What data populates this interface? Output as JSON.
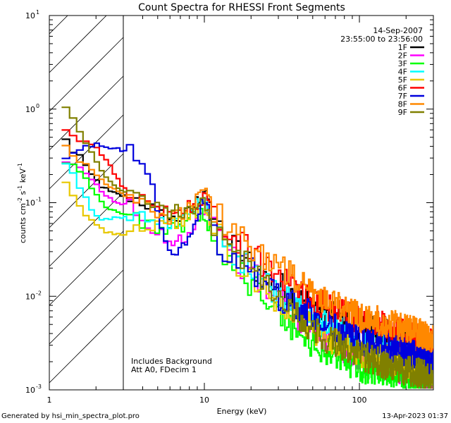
{
  "chart_data": {
    "type": "line",
    "title": "Count Spectra for RHESSI Front Segments",
    "xlabel": "Energy (keV)",
    "ylabel_parts": [
      "counts cm",
      "-2",
      " s",
      "-1",
      " keV",
      "-1"
    ],
    "xscale": "log",
    "yscale": "log",
    "xlim": [
      1,
      300
    ],
    "ylim": [
      0.001,
      10
    ],
    "x_ticks": [
      {
        "value": 1,
        "label": "1"
      },
      {
        "value": 10,
        "label": "10"
      },
      {
        "value": 100,
        "label": "100"
      }
    ],
    "y_ticks": [
      {
        "value": 0.001,
        "base": "10",
        "exp": "-3"
      },
      {
        "value": 0.01,
        "base": "10",
        "exp": "-2"
      },
      {
        "value": 0.1,
        "base": "10",
        "exp": "-1"
      },
      {
        "value": 1,
        "base": "10",
        "exp": "0"
      },
      {
        "value": 10,
        "base": "10",
        "exp": "1"
      }
    ],
    "date": "14-Sep-2007",
    "time_range": "23:55:00 to 23:56:00",
    "annotation_lines": [
      "Includes Background",
      "Att A0, FDecim 1"
    ],
    "excluded_region": {
      "x_from": 1,
      "x_to": 3
    },
    "series": [
      {
        "name": "1F",
        "color": "#000000",
        "points": [
          [
            1.2,
            0.47
          ],
          [
            1.35,
            0.35
          ],
          [
            1.5,
            0.32
          ],
          [
            1.7,
            0.22
          ],
          [
            1.9,
            0.18
          ],
          [
            2.1,
            0.15
          ],
          [
            2.4,
            0.13
          ],
          [
            2.8,
            0.12
          ],
          [
            3.2,
            0.115
          ],
          [
            4,
            0.1
          ],
          [
            5,
            0.075
          ],
          [
            6,
            0.065
          ],
          [
            7,
            0.07
          ],
          [
            8,
            0.08
          ],
          [
            9,
            0.11
          ],
          [
            10,
            0.15
          ],
          [
            11,
            0.07
          ],
          [
            13,
            0.042
          ],
          [
            16,
            0.031
          ],
          [
            20,
            0.021
          ],
          [
            25,
            0.015
          ],
          [
            30,
            0.013
          ],
          [
            40,
            0.0095
          ],
          [
            50,
            0.008
          ],
          [
            60,
            0.0065
          ],
          [
            80,
            0.0055
          ],
          [
            100,
            0.0045
          ],
          [
            130,
            0.0042
          ],
          [
            160,
            0.0038
          ],
          [
            200,
            0.0036
          ],
          [
            250,
            0.003
          ],
          [
            300,
            0.0025
          ]
        ]
      },
      {
        "name": "2F",
        "color": "#ff00ff",
        "points": [
          [
            1.2,
            0.26
          ],
          [
            1.35,
            0.25
          ],
          [
            1.5,
            0.24
          ],
          [
            1.7,
            0.2
          ],
          [
            1.9,
            0.16
          ],
          [
            2.1,
            0.13
          ],
          [
            2.4,
            0.11
          ],
          [
            2.8,
            0.1
          ],
          [
            3.2,
            0.09
          ],
          [
            4,
            0.06
          ],
          [
            5,
            0.045
          ],
          [
            6,
            0.04
          ],
          [
            7,
            0.042
          ],
          [
            8,
            0.05
          ],
          [
            9,
            0.07
          ],
          [
            10,
            0.09
          ],
          [
            11,
            0.06
          ],
          [
            13,
            0.035
          ],
          [
            16,
            0.025
          ],
          [
            20,
            0.017
          ],
          [
            25,
            0.012
          ],
          [
            30,
            0.009
          ],
          [
            40,
            0.006
          ],
          [
            50,
            0.0045
          ],
          [
            60,
            0.0035
          ],
          [
            80,
            0.0028
          ],
          [
            100,
            0.0022
          ],
          [
            130,
            0.002
          ],
          [
            160,
            0.0017
          ],
          [
            200,
            0.0016
          ],
          [
            250,
            0.0014
          ],
          [
            300,
            0.0012
          ]
        ]
      },
      {
        "name": "3F",
        "color": "#00ff00",
        "points": [
          [
            1.2,
            0.27
          ],
          [
            1.35,
            0.26
          ],
          [
            1.5,
            0.22
          ],
          [
            1.7,
            0.17
          ],
          [
            1.9,
            0.13
          ],
          [
            2.1,
            0.1
          ],
          [
            2.4,
            0.085
          ],
          [
            2.8,
            0.078
          ],
          [
            3.2,
            0.07
          ],
          [
            4,
            0.062
          ],
          [
            5,
            0.055
          ],
          [
            6,
            0.05
          ],
          [
            7,
            0.055
          ],
          [
            8,
            0.065
          ],
          [
            9,
            0.07
          ],
          [
            10,
            0.075
          ],
          [
            11,
            0.045
          ],
          [
            13,
            0.03
          ],
          [
            16,
            0.02
          ],
          [
            20,
            0.013
          ],
          [
            25,
            0.009
          ],
          [
            30,
            0.006
          ],
          [
            40,
            0.004
          ],
          [
            50,
            0.003
          ],
          [
            60,
            0.0025
          ],
          [
            80,
            0.002
          ],
          [
            100,
            0.0017
          ],
          [
            130,
            0.0016
          ],
          [
            160,
            0.0015
          ],
          [
            200,
            0.0014
          ],
          [
            250,
            0.0013
          ],
          [
            300,
            0.0012
          ]
        ]
      },
      {
        "name": "4F",
        "color": "#00ffff",
        "points": [
          [
            1.2,
            0.26
          ],
          [
            1.35,
            0.2
          ],
          [
            1.5,
            0.15
          ],
          [
            1.7,
            0.1
          ],
          [
            1.9,
            0.075
          ],
          [
            2.1,
            0.065
          ],
          [
            2.4,
            0.068
          ],
          [
            2.8,
            0.07
          ],
          [
            3.2,
            0.072
          ],
          [
            4,
            0.07
          ],
          [
            5,
            0.065
          ],
          [
            6,
            0.06
          ],
          [
            7,
            0.065
          ],
          [
            8,
            0.08
          ],
          [
            9,
            0.095
          ],
          [
            10,
            0.11
          ],
          [
            11,
            0.06
          ],
          [
            13,
            0.035
          ],
          [
            16,
            0.026
          ],
          [
            20,
            0.018
          ],
          [
            25,
            0.013
          ],
          [
            30,
            0.01
          ],
          [
            40,
            0.0075
          ],
          [
            50,
            0.006
          ],
          [
            60,
            0.005
          ],
          [
            80,
            0.004
          ],
          [
            100,
            0.0033
          ],
          [
            130,
            0.003
          ],
          [
            160,
            0.0027
          ],
          [
            200,
            0.0025
          ],
          [
            250,
            0.0023
          ],
          [
            300,
            0.002
          ]
        ]
      },
      {
        "name": "5F",
        "color": "#e8c800",
        "points": [
          [
            1.2,
            0.16
          ],
          [
            1.35,
            0.12
          ],
          [
            1.5,
            0.09
          ],
          [
            1.7,
            0.07
          ],
          [
            1.9,
            0.06
          ],
          [
            2.1,
            0.052
          ],
          [
            2.4,
            0.048
          ],
          [
            2.8,
            0.045
          ],
          [
            3.2,
            0.048
          ],
          [
            4,
            0.055
          ],
          [
            5,
            0.06
          ],
          [
            6,
            0.06
          ],
          [
            7,
            0.065
          ],
          [
            8,
            0.075
          ],
          [
            9,
            0.085
          ],
          [
            10,
            0.095
          ],
          [
            11,
            0.055
          ],
          [
            13,
            0.035
          ],
          [
            16,
            0.024
          ],
          [
            20,
            0.016
          ],
          [
            25,
            0.011
          ],
          [
            30,
            0.008
          ],
          [
            40,
            0.006
          ],
          [
            50,
            0.0045
          ],
          [
            60,
            0.0038
          ],
          [
            80,
            0.003
          ],
          [
            100,
            0.0025
          ],
          [
            130,
            0.0023
          ],
          [
            160,
            0.0021
          ],
          [
            200,
            0.0019
          ],
          [
            250,
            0.0018
          ],
          [
            300,
            0.0016
          ]
        ]
      },
      {
        "name": "6F",
        "color": "#ff0000",
        "points": [
          [
            1.2,
            0.62
          ],
          [
            1.35,
            0.5
          ],
          [
            1.5,
            0.45
          ],
          [
            1.7,
            0.45
          ],
          [
            1.9,
            0.4
          ],
          [
            2.1,
            0.33
          ],
          [
            2.4,
            0.25
          ],
          [
            2.8,
            0.16
          ],
          [
            3.2,
            0.13
          ],
          [
            4,
            0.1
          ],
          [
            5,
            0.08
          ],
          [
            6,
            0.075
          ],
          [
            7,
            0.085
          ],
          [
            8,
            0.09
          ],
          [
            9,
            0.1
          ],
          [
            10,
            0.12
          ],
          [
            11,
            0.09
          ],
          [
            13,
            0.06
          ],
          [
            16,
            0.04
          ],
          [
            20,
            0.028
          ],
          [
            25,
            0.021
          ],
          [
            30,
            0.017
          ],
          [
            40,
            0.012
          ],
          [
            50,
            0.0095
          ],
          [
            60,
            0.008
          ],
          [
            80,
            0.0065
          ],
          [
            100,
            0.0055
          ],
          [
            130,
            0.005
          ],
          [
            160,
            0.0045
          ],
          [
            200,
            0.004
          ],
          [
            250,
            0.0035
          ],
          [
            300,
            0.003
          ]
        ]
      },
      {
        "name": "7F",
        "color": "#0000dd",
        "points": [
          [
            1.2,
            0.3
          ],
          [
            1.35,
            0.34
          ],
          [
            1.5,
            0.37
          ],
          [
            1.7,
            0.4
          ],
          [
            1.9,
            0.42
          ],
          [
            2.1,
            0.4
          ],
          [
            2.4,
            0.38
          ],
          [
            2.8,
            0.37
          ],
          [
            3.2,
            0.36
          ],
          [
            3.6,
            0.28
          ],
          [
            4,
            0.2
          ],
          [
            4.5,
            0.14
          ],
          [
            5,
            0.07
          ],
          [
            5.5,
            0.04
          ],
          [
            6,
            0.025
          ],
          [
            7,
            0.03
          ],
          [
            8,
            0.05
          ],
          [
            9,
            0.08
          ],
          [
            10,
            0.12
          ],
          [
            11,
            0.05
          ],
          [
            13,
            0.03
          ],
          [
            16,
            0.025
          ],
          [
            20,
            0.018
          ],
          [
            25,
            0.013
          ],
          [
            30,
            0.01
          ],
          [
            40,
            0.0075
          ],
          [
            50,
            0.006
          ],
          [
            60,
            0.005
          ],
          [
            80,
            0.004
          ],
          [
            100,
            0.0035
          ],
          [
            130,
            0.003
          ],
          [
            160,
            0.0028
          ],
          [
            200,
            0.0025
          ],
          [
            250,
            0.0022
          ],
          [
            300,
            0.002
          ]
        ]
      },
      {
        "name": "8F",
        "color": "#ff8800",
        "points": [
          [
            1.2,
            0.4
          ],
          [
            1.35,
            0.33
          ],
          [
            1.5,
            0.28
          ],
          [
            1.7,
            0.24
          ],
          [
            1.9,
            0.21
          ],
          [
            2.1,
            0.18
          ],
          [
            2.4,
            0.15
          ],
          [
            2.8,
            0.13
          ],
          [
            3.2,
            0.11
          ],
          [
            4,
            0.09
          ],
          [
            5,
            0.075
          ],
          [
            6,
            0.07
          ],
          [
            7,
            0.075
          ],
          [
            8,
            0.09
          ],
          [
            9,
            0.12
          ],
          [
            10,
            0.13
          ],
          [
            11,
            0.09
          ],
          [
            13,
            0.06
          ],
          [
            16,
            0.045
          ],
          [
            20,
            0.033
          ],
          [
            25,
            0.025
          ],
          [
            30,
            0.02
          ],
          [
            40,
            0.014
          ],
          [
            50,
            0.011
          ],
          [
            60,
            0.009
          ],
          [
            80,
            0.0075
          ],
          [
            100,
            0.006
          ],
          [
            130,
            0.0055
          ],
          [
            160,
            0.005
          ],
          [
            200,
            0.0045
          ],
          [
            250,
            0.004
          ],
          [
            300,
            0.0035
          ]
        ]
      },
      {
        "name": "9F",
        "color": "#808000",
        "points": [
          [
            1.2,
            1.0
          ],
          [
            1.35,
            0.8
          ],
          [
            1.5,
            0.55
          ],
          [
            1.7,
            0.4
          ],
          [
            1.9,
            0.3
          ],
          [
            2.1,
            0.22
          ],
          [
            2.4,
            0.17
          ],
          [
            2.8,
            0.14
          ],
          [
            3.2,
            0.12
          ],
          [
            4,
            0.1
          ],
          [
            5,
            0.085
          ],
          [
            6,
            0.08
          ],
          [
            7,
            0.08
          ],
          [
            8,
            0.085
          ],
          [
            9,
            0.09
          ],
          [
            10,
            0.1
          ],
          [
            11,
            0.06
          ],
          [
            13,
            0.04
          ],
          [
            16,
            0.028
          ],
          [
            20,
            0.018
          ],
          [
            25,
            0.012
          ],
          [
            30,
            0.009
          ],
          [
            40,
            0.006
          ],
          [
            50,
            0.0045
          ],
          [
            60,
            0.0035
          ],
          [
            80,
            0.0028
          ],
          [
            100,
            0.0023
          ],
          [
            130,
            0.002
          ],
          [
            160,
            0.0018
          ],
          [
            200,
            0.0016
          ],
          [
            250,
            0.0015
          ],
          [
            300,
            0.0013
          ]
        ]
      }
    ]
  },
  "footer": {
    "left": "Generated by hsi_min_spectra_plot.pro",
    "right": "13-Apr-2023 01:37"
  }
}
